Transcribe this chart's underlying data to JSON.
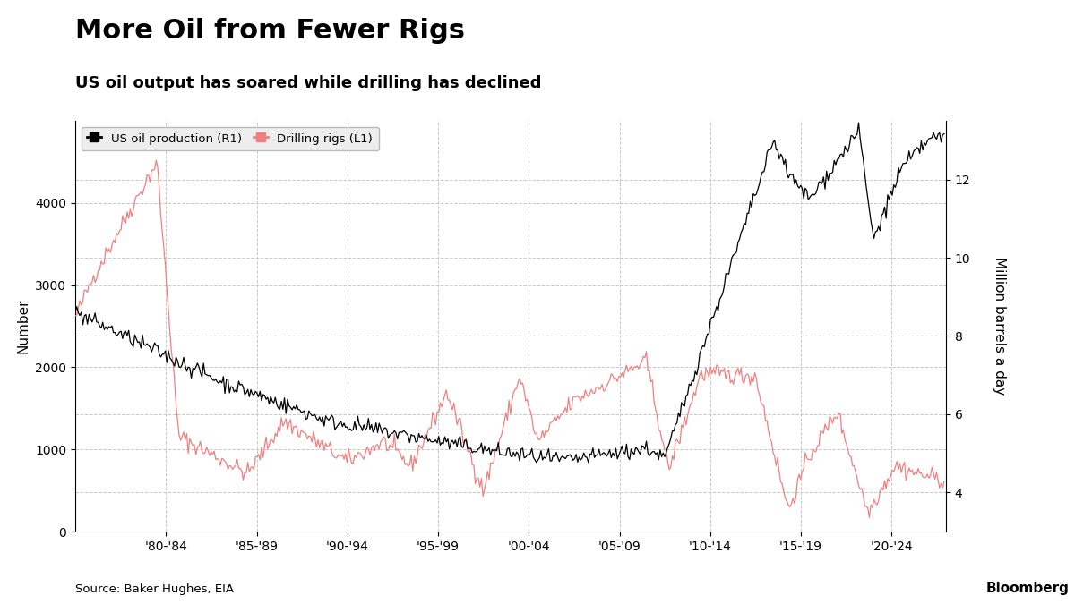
{
  "title": "More Oil from Fewer Rigs",
  "subtitle": "US oil output has soared while drilling has declined",
  "legend_labels": [
    "US oil production (R1)",
    "Drilling rigs (L1)"
  ],
  "left_ylabel": "Number",
  "right_ylabel": "Million barrels a day",
  "source": "Source: Baker Hughes, EIA",
  "xtick_labels": [
    "'80-'84",
    "'85-'89",
    "'90-'94",
    "'95-'99",
    "'00-'04",
    "'05-'09",
    "'10-'14",
    "'15-'19",
    "'20-'24"
  ],
  "xtick_positions": [
    1982,
    1987,
    1992,
    1997,
    2002,
    2007,
    2012,
    2017,
    2022
  ],
  "left_ylim": [
    0,
    5000
  ],
  "left_yticks": [
    0,
    1000,
    2000,
    3000,
    4000
  ],
  "right_ylim": [
    3.0,
    13.5
  ],
  "right_yticks": [
    4,
    6,
    8,
    10,
    12
  ],
  "xmin": 1977,
  "xmax": 2025,
  "bg_color": "#ffffff",
  "grid_color": "#c8c8c8",
  "rig_color": "#f08080",
  "prod_color": "#000000",
  "title_fontsize": 22,
  "subtitle_fontsize": 13,
  "axis_fontsize": 10,
  "ylabel_fontsize": 11
}
